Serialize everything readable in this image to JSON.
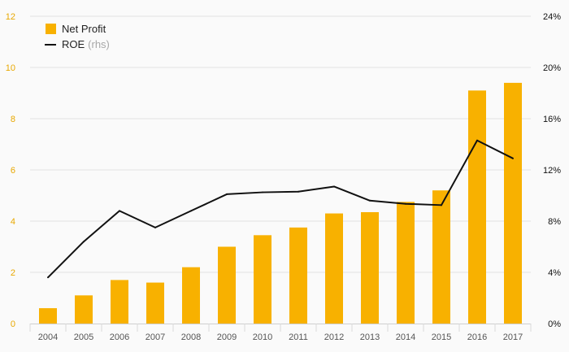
{
  "colors": {
    "bar": "#F8B100",
    "line": "#111111",
    "left_axis_text": "#E8A800",
    "right_axis_text": "#111111",
    "grid": "#e3e3e3",
    "legend_muted": "#a8a8a8",
    "x_axis_text": "#555555"
  },
  "legend": {
    "bar_label": "Net Profit",
    "line_label": "ROE",
    "line_suffix": "(rhs)"
  },
  "chart_data": {
    "type": "bar",
    "categories": [
      "2004",
      "2005",
      "2006",
      "2007",
      "2008",
      "2009",
      "2010",
      "2011",
      "2012",
      "2013",
      "2014",
      "2015",
      "2016",
      "2017"
    ],
    "series": [
      {
        "name": "Net Profit",
        "type": "bar",
        "axis": "left",
        "values": [
          0.6,
          1.1,
          1.7,
          1.6,
          2.2,
          3.0,
          3.45,
          3.75,
          4.3,
          4.35,
          4.75,
          5.2,
          9.1,
          9.4
        ]
      },
      {
        "name": "ROE (rhs)",
        "type": "line",
        "axis": "right",
        "values": [
          3.6,
          6.4,
          8.8,
          7.5,
          8.8,
          10.1,
          10.25,
          10.3,
          10.7,
          9.6,
          9.35,
          9.25,
          14.3,
          12.9
        ]
      }
    ],
    "left_axis": {
      "ylim": [
        0,
        12
      ],
      "ticks": [
        "0",
        "2",
        "4",
        "6",
        "8",
        "10",
        "12"
      ]
    },
    "right_axis": {
      "ylim": [
        0,
        24
      ],
      "ticks": [
        "0%",
        "4%",
        "8%",
        "12%",
        "16%",
        "20%",
        "24%"
      ]
    },
    "grid": true,
    "legend_position": "top-left"
  }
}
